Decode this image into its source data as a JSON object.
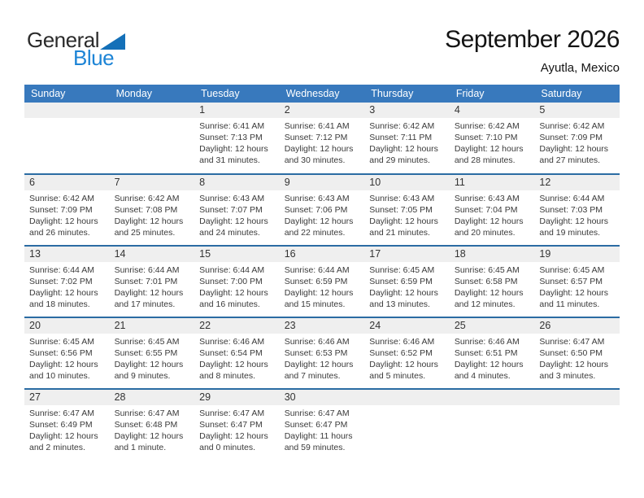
{
  "logo": {
    "general": "General",
    "blue": "Blue"
  },
  "header": {
    "title": "September 2026",
    "subtitle": "Ayutla, Mexico"
  },
  "colors": {
    "header_bg": "#3879bd",
    "week_divider": "#2b6ca3",
    "day_strip_bg": "#efefef",
    "logo_blue": "#1d84d6",
    "triangle_blue": "#1470b8"
  },
  "labels": {
    "sunrise": "Sunrise:",
    "sunset": "Sunset:",
    "daylight": "Daylight:"
  },
  "weekdays": [
    "Sunday",
    "Monday",
    "Tuesday",
    "Wednesday",
    "Thursday",
    "Friday",
    "Saturday"
  ],
  "weeks": [
    [
      {
        "day": ""
      },
      {
        "day": ""
      },
      {
        "day": "1",
        "sunrise": "6:41 AM",
        "sunset": "7:13 PM",
        "daylight": "12 hours and 31 minutes."
      },
      {
        "day": "2",
        "sunrise": "6:41 AM",
        "sunset": "7:12 PM",
        "daylight": "12 hours and 30 minutes."
      },
      {
        "day": "3",
        "sunrise": "6:42 AM",
        "sunset": "7:11 PM",
        "daylight": "12 hours and 29 minutes."
      },
      {
        "day": "4",
        "sunrise": "6:42 AM",
        "sunset": "7:10 PM",
        "daylight": "12 hours and 28 minutes."
      },
      {
        "day": "5",
        "sunrise": "6:42 AM",
        "sunset": "7:09 PM",
        "daylight": "12 hours and 27 minutes."
      }
    ],
    [
      {
        "day": "6",
        "sunrise": "6:42 AM",
        "sunset": "7:09 PM",
        "daylight": "12 hours and 26 minutes."
      },
      {
        "day": "7",
        "sunrise": "6:42 AM",
        "sunset": "7:08 PM",
        "daylight": "12 hours and 25 minutes."
      },
      {
        "day": "8",
        "sunrise": "6:43 AM",
        "sunset": "7:07 PM",
        "daylight": "12 hours and 24 minutes."
      },
      {
        "day": "9",
        "sunrise": "6:43 AM",
        "sunset": "7:06 PM",
        "daylight": "12 hours and 22 minutes."
      },
      {
        "day": "10",
        "sunrise": "6:43 AM",
        "sunset": "7:05 PM",
        "daylight": "12 hours and 21 minutes."
      },
      {
        "day": "11",
        "sunrise": "6:43 AM",
        "sunset": "7:04 PM",
        "daylight": "12 hours and 20 minutes."
      },
      {
        "day": "12",
        "sunrise": "6:44 AM",
        "sunset": "7:03 PM",
        "daylight": "12 hours and 19 minutes."
      }
    ],
    [
      {
        "day": "13",
        "sunrise": "6:44 AM",
        "sunset": "7:02 PM",
        "daylight": "12 hours and 18 minutes."
      },
      {
        "day": "14",
        "sunrise": "6:44 AM",
        "sunset": "7:01 PM",
        "daylight": "12 hours and 17 minutes."
      },
      {
        "day": "15",
        "sunrise": "6:44 AM",
        "sunset": "7:00 PM",
        "daylight": "12 hours and 16 minutes."
      },
      {
        "day": "16",
        "sunrise": "6:44 AM",
        "sunset": "6:59 PM",
        "daylight": "12 hours and 15 minutes."
      },
      {
        "day": "17",
        "sunrise": "6:45 AM",
        "sunset": "6:59 PM",
        "daylight": "12 hours and 13 minutes."
      },
      {
        "day": "18",
        "sunrise": "6:45 AM",
        "sunset": "6:58 PM",
        "daylight": "12 hours and 12 minutes."
      },
      {
        "day": "19",
        "sunrise": "6:45 AM",
        "sunset": "6:57 PM",
        "daylight": "12 hours and 11 minutes."
      }
    ],
    [
      {
        "day": "20",
        "sunrise": "6:45 AM",
        "sunset": "6:56 PM",
        "daylight": "12 hours and 10 minutes."
      },
      {
        "day": "21",
        "sunrise": "6:45 AM",
        "sunset": "6:55 PM",
        "daylight": "12 hours and 9 minutes."
      },
      {
        "day": "22",
        "sunrise": "6:46 AM",
        "sunset": "6:54 PM",
        "daylight": "12 hours and 8 minutes."
      },
      {
        "day": "23",
        "sunrise": "6:46 AM",
        "sunset": "6:53 PM",
        "daylight": "12 hours and 7 minutes."
      },
      {
        "day": "24",
        "sunrise": "6:46 AM",
        "sunset": "6:52 PM",
        "daylight": "12 hours and 5 minutes."
      },
      {
        "day": "25",
        "sunrise": "6:46 AM",
        "sunset": "6:51 PM",
        "daylight": "12 hours and 4 minutes."
      },
      {
        "day": "26",
        "sunrise": "6:47 AM",
        "sunset": "6:50 PM",
        "daylight": "12 hours and 3 minutes."
      }
    ],
    [
      {
        "day": "27",
        "sunrise": "6:47 AM",
        "sunset": "6:49 PM",
        "daylight": "12 hours and 2 minutes."
      },
      {
        "day": "28",
        "sunrise": "6:47 AM",
        "sunset": "6:48 PM",
        "daylight": "12 hours and 1 minute."
      },
      {
        "day": "29",
        "sunrise": "6:47 AM",
        "sunset": "6:47 PM",
        "daylight": "12 hours and 0 minutes."
      },
      {
        "day": "30",
        "sunrise": "6:47 AM",
        "sunset": "6:47 PM",
        "daylight": "11 hours and 59 minutes."
      },
      {
        "day": ""
      },
      {
        "day": ""
      },
      {
        "day": ""
      }
    ]
  ]
}
